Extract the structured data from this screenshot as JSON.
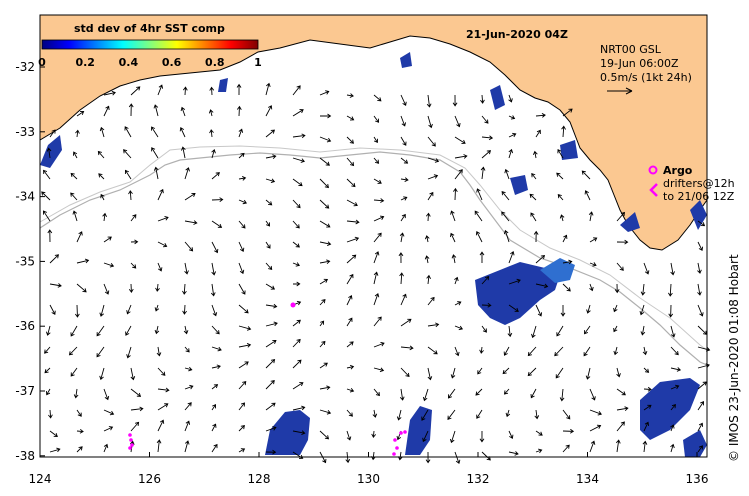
{
  "map": {
    "date_title": "21-Jun-2020 04Z",
    "colorbar": {
      "title": "std dev of 4hr SST comp",
      "ticks": [
        "0",
        "0.2",
        "0.4",
        "0.6",
        "0.8",
        "1"
      ],
      "colors": [
        "#000080",
        "#0000ff",
        "#0080ff",
        "#00ffff",
        "#80ff80",
        "#ffff00",
        "#ff8000",
        "#ff0000",
        "#800000"
      ]
    },
    "current_info": {
      "line1": "NRT00 GSL",
      "line2": "19-Jun 06:00Z",
      "line3": "0.5m/s (1kt 24h)"
    },
    "legend": {
      "argo_label": "Argo",
      "drifters_line1": "drifters@12h",
      "drifters_line2": "to 21/06 12Z"
    },
    "credit": "© IMOS 23-Jun-2020 01:08 Hobart",
    "x_ticks": [
      "124",
      "126",
      "128",
      "130",
      "132",
      "134",
      "136"
    ],
    "y_ticks": [
      "-32",
      "-33",
      "-34",
      "-35",
      "-36",
      "-37",
      "-38"
    ],
    "land_color": "#fbc891",
    "argo_color": "#ff00ff",
    "sst_patch_color": "#1f3aa8"
  }
}
